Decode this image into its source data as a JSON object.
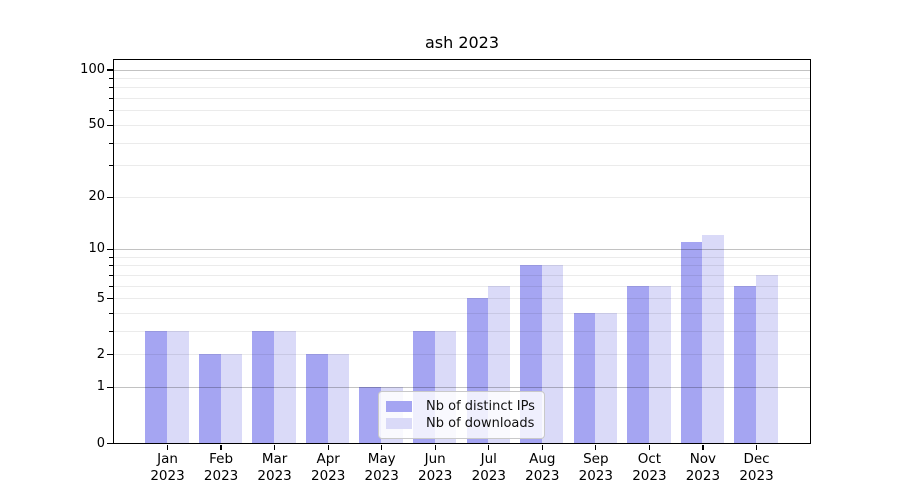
{
  "chart_data": {
    "type": "bar",
    "title": "ash 2023",
    "categories": [
      "Jan 2023",
      "Feb 2023",
      "Mar 2023",
      "Apr 2023",
      "May 2023",
      "Jun 2023",
      "Jul 2023",
      "Aug 2023",
      "Sep 2023",
      "Oct 2023",
      "Nov 2023",
      "Dec 2023"
    ],
    "x_tick_month": [
      "Jan",
      "Feb",
      "Mar",
      "Apr",
      "May",
      "Jun",
      "Jul",
      "Aug",
      "Sep",
      "Oct",
      "Nov",
      "Dec"
    ],
    "x_tick_year": "2023",
    "series": [
      {
        "name": "Nb of distinct IPs",
        "color": "#a5a5f2",
        "values": [
          3,
          2,
          3,
          2,
          1,
          3,
          5,
          8,
          4,
          6,
          11,
          6
        ]
      },
      {
        "name": "Nb of downloads",
        "color": "#dadaf8",
        "values": [
          3,
          2,
          3,
          2,
          1,
          3,
          6,
          8,
          4,
          6,
          12,
          7
        ]
      }
    ],
    "yscale": "log1p",
    "ylim": [
      0,
      113
    ],
    "yticks_labeled": [
      0,
      1,
      2,
      5,
      10,
      20,
      50,
      100
    ],
    "yticks_major": [
      1,
      10,
      100
    ],
    "yticks_minor_labeled": [
      2,
      5,
      20,
      50
    ],
    "yticks_minor_unlabeled": [
      3,
      4,
      6,
      7,
      8,
      9,
      30,
      40,
      60,
      70,
      80,
      90
    ],
    "grid": "horizontal, drawn above bars",
    "legend_position": "lower center"
  },
  "legend": {
    "items": [
      {
        "label": "Nb of distinct IPs"
      },
      {
        "label": "Nb of downloads"
      }
    ]
  },
  "colors": {
    "series1": "#a5a5f2",
    "series2": "#dadaf8",
    "spine": "#000000",
    "grid_major": "rgba(0,0,0,0.24)",
    "grid_minor": "rgba(0,0,0,0.08)",
    "legend_border": "#c9c9c9"
  }
}
